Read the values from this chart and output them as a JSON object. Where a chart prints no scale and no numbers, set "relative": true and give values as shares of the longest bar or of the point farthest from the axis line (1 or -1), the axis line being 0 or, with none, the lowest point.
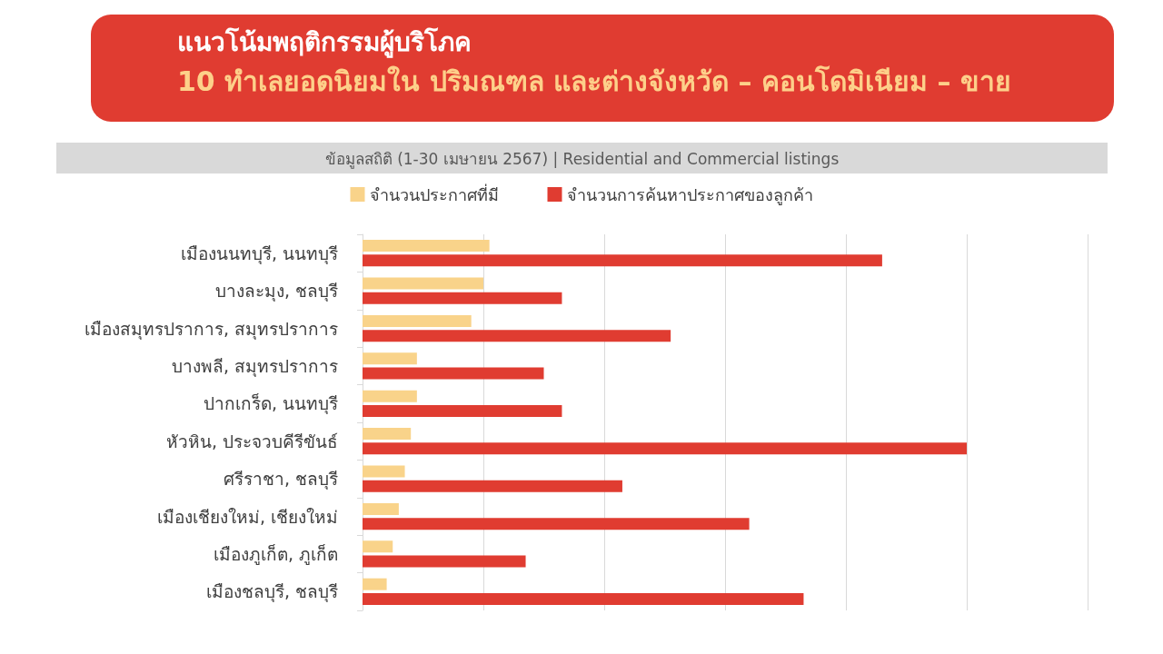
{
  "chart_data": {
    "type": "bar",
    "orientation": "horizontal",
    "relative": true,
    "title": "แนวโน้มพฤติกรรมผู้บริโภค",
    "subtitle": "10 ทำเลยอดนิยมใน ปริมณฑล และต่างจังหวัด – คอนโดมิเนียม – ขาย",
    "annotations": [
      "ข้อมูลสถิติ (1-30 เมษายน 2567) | Residential and Commercial listings"
    ],
    "categories": [
      "เมืองนนทบุรี, นนทบุรี",
      "บางละมุง, ชลบุรี",
      "เมืองสมุทรปราการ, สมุทรปราการ",
      "บางพลี, สมุทรปราการ",
      "ปากเกร็ด, นนทบุรี",
      "หัวหิน, ประจวบคีรีขันธ์",
      "ศรีราชา, ชลบุรี",
      "เมืองเชียงใหม่, เชียงใหม่",
      "เมืองภูเก็ต, ภูเก็ต",
      "เมืองชลบุรี, ชลบุรี"
    ],
    "series": [
      {
        "name": "จำนวนประกาศที่มี",
        "color": "#f9d38a",
        "values": [
          0.21,
          0.2,
          0.18,
          0.09,
          0.09,
          0.08,
          0.07,
          0.06,
          0.05,
          0.04
        ]
      },
      {
        "name": "จำนวนการค้นหาประกาศของลูกค้า",
        "color": "#e03c31",
        "values": [
          0.86,
          0.33,
          0.51,
          0.3,
          0.33,
          1,
          0.43,
          0.64,
          0.27,
          0.73
        ]
      }
    ],
    "grid": "x",
    "legend": "top"
  }
}
